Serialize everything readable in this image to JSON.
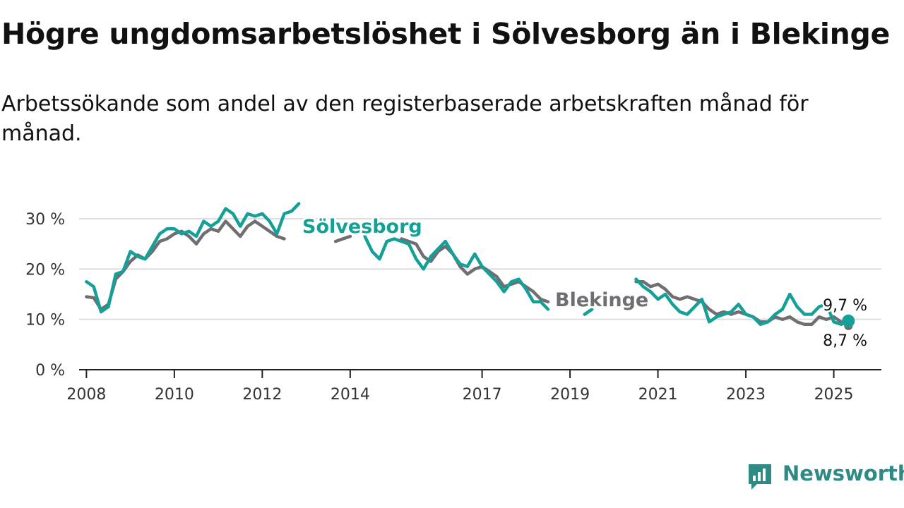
{
  "header": {
    "title": "Högre ungdomsarbetslöshet i Sölvesborg än i Blekinge",
    "subtitle": "Arbetssökande som andel av den registerbaserade arbetskraften månad för månad."
  },
  "brand": {
    "name": "Newsworthy",
    "icon": "newsworthy-logo-icon",
    "color": "#2e8a85"
  },
  "colors": {
    "solvesborg": "#14a096",
    "blekinge": "#6e6e73",
    "grid": "#dcdcdc",
    "axis": "#222222"
  },
  "chart_data": {
    "type": "line",
    "title": "Högre ungdomsarbetslöshet i Sölvesborg än i Blekinge",
    "subtitle": "Arbetssökande som andel av den registerbaserade arbetskraften månad för månad.",
    "xlabel": "",
    "ylabel": "",
    "ylim": [
      0,
      30
    ],
    "xlim": [
      "2007-11",
      "2026-02"
    ],
    "y_ticks": [
      0,
      10,
      20,
      30
    ],
    "y_tick_labels": [
      "0 %",
      "10 %",
      "20 %",
      "30 %"
    ],
    "x_ticks": [
      "2008-01",
      "2010-01",
      "2012-01",
      "2014-01",
      "2017-01",
      "2019-01",
      "2021-01",
      "2023-01",
      "2025-01"
    ],
    "x_tick_labels": [
      "2008",
      "2010",
      "2012",
      "2014",
      "2017",
      "2019",
      "2021",
      "2023",
      "2025"
    ],
    "grid": true,
    "legend": "direct labels on lines",
    "series": [
      {
        "name": "Blekinge",
        "color": "#6e6e73",
        "label": "Blekinge",
        "end_label": "8,7 %",
        "points": [
          [
            "2008-01",
            14.5
          ],
          [
            "2008-03",
            14.3
          ],
          [
            "2008-05",
            12.0
          ],
          [
            "2008-07",
            13.0
          ],
          [
            "2008-09",
            18.0
          ],
          [
            "2008-11",
            19.5
          ],
          [
            "2009-01",
            21.5
          ],
          [
            "2009-03",
            22.8
          ],
          [
            "2009-05",
            22.0
          ],
          [
            "2009-07",
            23.5
          ],
          [
            "2009-09",
            25.5
          ],
          [
            "2009-11",
            26.0
          ],
          [
            "2010-01",
            27.0
          ],
          [
            "2010-03",
            27.5
          ],
          [
            "2010-05",
            26.5
          ],
          [
            "2010-07",
            25.0
          ],
          [
            "2010-09",
            27.0
          ],
          [
            "2010-11",
            28.0
          ],
          [
            "2011-01",
            27.5
          ],
          [
            "2011-03",
            29.5
          ],
          [
            "2011-05",
            28.0
          ],
          [
            "2011-07",
            26.5
          ],
          [
            "2011-09",
            28.5
          ],
          [
            "2011-11",
            29.5
          ],
          [
            "2012-01",
            28.5
          ],
          [
            "2012-03",
            27.5
          ],
          [
            "2012-05",
            26.5
          ],
          [
            "2012-07",
            26.0
          ],
          [
            "2013-09",
            25.5
          ],
          [
            "2013-11",
            26.0
          ],
          [
            "2014-01",
            26.5
          ],
          [
            "2015-03",
            26.0
          ],
          [
            "2015-05",
            25.5
          ],
          [
            "2015-07",
            25.0
          ],
          [
            "2015-09",
            22.5
          ],
          [
            "2015-11",
            21.5
          ],
          [
            "2016-01",
            23.5
          ],
          [
            "2016-03",
            24.5
          ],
          [
            "2016-05",
            23.0
          ],
          [
            "2016-07",
            20.5
          ],
          [
            "2016-09",
            19.0
          ],
          [
            "2016-11",
            20.0
          ],
          [
            "2017-01",
            20.5
          ],
          [
            "2017-03",
            19.5
          ],
          [
            "2017-05",
            18.5
          ],
          [
            "2017-07",
            16.5
          ],
          [
            "2017-09",
            17.0
          ],
          [
            "2017-11",
            17.5
          ],
          [
            "2018-01",
            16.5
          ],
          [
            "2018-03",
            15.5
          ],
          [
            "2018-05",
            14.0
          ],
          [
            "2018-07",
            13.5
          ],
          [
            "2020-07",
            17.5
          ],
          [
            "2020-09",
            17.5
          ],
          [
            "2020-11",
            16.5
          ],
          [
            "2021-01",
            17.0
          ],
          [
            "2021-03",
            16.0
          ],
          [
            "2021-05",
            14.5
          ],
          [
            "2021-07",
            14.0
          ],
          [
            "2021-09",
            14.5
          ],
          [
            "2021-11",
            14.0
          ],
          [
            "2022-01",
            13.5
          ],
          [
            "2022-03",
            12.0
          ],
          [
            "2022-05",
            11.0
          ],
          [
            "2022-07",
            11.5
          ],
          [
            "2022-09",
            11.0
          ],
          [
            "2022-11",
            11.5
          ],
          [
            "2023-01",
            11.0
          ],
          [
            "2023-03",
            10.5
          ],
          [
            "2023-05",
            9.5
          ],
          [
            "2023-07",
            9.5
          ],
          [
            "2023-09",
            10.5
          ],
          [
            "2023-11",
            10.0
          ],
          [
            "2024-01",
            10.5
          ],
          [
            "2024-03",
            9.5
          ],
          [
            "2024-05",
            9.0
          ],
          [
            "2024-07",
            9.0
          ],
          [
            "2024-09",
            10.5
          ],
          [
            "2024-11",
            10.0
          ],
          [
            "2025-01",
            10.5
          ],
          [
            "2025-03",
            9.5
          ],
          [
            "2025-05",
            8.7
          ]
        ]
      },
      {
        "name": "Sölvesborg",
        "color": "#14a096",
        "label": "Sölvesborg",
        "end_label": "9,7 %",
        "points": [
          [
            "2008-01",
            17.5
          ],
          [
            "2008-03",
            16.5
          ],
          [
            "2008-05",
            11.5
          ],
          [
            "2008-07",
            12.5
          ],
          [
            "2008-09",
            19.0
          ],
          [
            "2008-11",
            19.5
          ],
          [
            "2009-01",
            23.5
          ],
          [
            "2009-03",
            22.5
          ],
          [
            "2009-05",
            22.0
          ],
          [
            "2009-07",
            24.5
          ],
          [
            "2009-09",
            27.0
          ],
          [
            "2009-11",
            28.0
          ],
          [
            "2010-01",
            28.0
          ],
          [
            "2010-03",
            27.0
          ],
          [
            "2010-05",
            27.5
          ],
          [
            "2010-07",
            26.5
          ],
          [
            "2010-09",
            29.5
          ],
          [
            "2010-11",
            28.5
          ],
          [
            "2011-01",
            29.5
          ],
          [
            "2011-03",
            32.0
          ],
          [
            "2011-05",
            31.0
          ],
          [
            "2011-07",
            28.5
          ],
          [
            "2011-09",
            31.0
          ],
          [
            "2011-11",
            30.5
          ],
          [
            "2012-01",
            31.0
          ],
          [
            "2012-03",
            29.5
          ],
          [
            "2012-05",
            27.0
          ],
          [
            "2012-07",
            31.0
          ],
          [
            "2012-09",
            31.5
          ],
          [
            "2012-11",
            33.0
          ],
          [
            "2014-05",
            26.5
          ],
          [
            "2014-07",
            23.5
          ],
          [
            "2014-09",
            22.0
          ],
          [
            "2014-11",
            25.5
          ],
          [
            "2015-01",
            26.0
          ],
          [
            "2015-03",
            25.5
          ],
          [
            "2015-05",
            25.0
          ],
          [
            "2015-07",
            22.0
          ],
          [
            "2015-09",
            20.0
          ],
          [
            "2015-11",
            22.5
          ],
          [
            "2016-01",
            24.0
          ],
          [
            "2016-03",
            25.5
          ],
          [
            "2016-05",
            23.0
          ],
          [
            "2016-07",
            21.0
          ],
          [
            "2016-09",
            20.5
          ],
          [
            "2016-11",
            23.0
          ],
          [
            "2017-01",
            20.5
          ],
          [
            "2017-03",
            19.0
          ],
          [
            "2017-05",
            17.5
          ],
          [
            "2017-07",
            15.5
          ],
          [
            "2017-09",
            17.5
          ],
          [
            "2017-11",
            18.0
          ],
          [
            "2018-01",
            16.0
          ],
          [
            "2018-03",
            13.5
          ],
          [
            "2018-05",
            13.5
          ],
          [
            "2018-07",
            12.0
          ],
          [
            "2019-05",
            11.0
          ],
          [
            "2019-07",
            12.0
          ],
          [
            "2020-07",
            18.0
          ],
          [
            "2020-09",
            16.5
          ],
          [
            "2020-11",
            15.5
          ],
          [
            "2021-01",
            14.0
          ],
          [
            "2021-03",
            15.0
          ],
          [
            "2021-05",
            13.0
          ],
          [
            "2021-07",
            11.5
          ],
          [
            "2021-09",
            11.0
          ],
          [
            "2021-11",
            12.5
          ],
          [
            "2022-01",
            14.0
          ],
          [
            "2022-03",
            9.5
          ],
          [
            "2022-05",
            10.5
          ],
          [
            "2022-07",
            11.0
          ],
          [
            "2022-09",
            11.5
          ],
          [
            "2022-11",
            13.0
          ],
          [
            "2023-01",
            11.0
          ],
          [
            "2023-03",
            10.5
          ],
          [
            "2023-05",
            9.0
          ],
          [
            "2023-07",
            9.5
          ],
          [
            "2023-09",
            11.0
          ],
          [
            "2023-11",
            12.0
          ],
          [
            "2024-01",
            15.0
          ],
          [
            "2024-03",
            12.5
          ],
          [
            "2024-05",
            11.0
          ],
          [
            "2024-07",
            11.0
          ],
          [
            "2024-09",
            12.5
          ],
          [
            "2024-11",
            13.0
          ],
          [
            "2025-01",
            9.5
          ],
          [
            "2025-03",
            9.0
          ],
          [
            "2025-05",
            9.7
          ]
        ]
      }
    ]
  }
}
